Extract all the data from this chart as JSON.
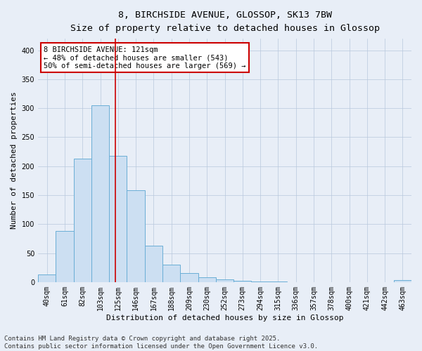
{
  "title": "8, BIRCHSIDE AVENUE, GLOSSOP, SK13 7BW",
  "subtitle": "Size of property relative to detached houses in Glossop",
  "xlabel": "Distribution of detached houses by size in Glossop",
  "ylabel": "Number of detached properties",
  "bin_labels": [
    "40sqm",
    "61sqm",
    "82sqm",
    "103sqm",
    "125sqm",
    "146sqm",
    "167sqm",
    "188sqm",
    "209sqm",
    "230sqm",
    "252sqm",
    "273sqm",
    "294sqm",
    "315sqm",
    "336sqm",
    "357sqm",
    "378sqm",
    "400sqm",
    "421sqm",
    "442sqm",
    "463sqm"
  ],
  "bar_heights": [
    13,
    88,
    213,
    305,
    218,
    159,
    63,
    30,
    15,
    8,
    5,
    2,
    1,
    1,
    0,
    0,
    0,
    0,
    0,
    0,
    3
  ],
  "bar_color": "#ccdff2",
  "bar_edge_color": "#6aaed6",
  "vline_bin_index": 3.85,
  "vline_color": "#cc0000",
  "annotation_text": "8 BIRCHSIDE AVENUE: 121sqm\n← 48% of detached houses are smaller (543)\n50% of semi-detached houses are larger (569) →",
  "annotation_box_color": "#ffffff",
  "annotation_border_color": "#cc0000",
  "ylim": [
    0,
    420
  ],
  "yticks": [
    0,
    50,
    100,
    150,
    200,
    250,
    300,
    350,
    400
  ],
  "footer_line1": "Contains HM Land Registry data © Crown copyright and database right 2025.",
  "footer_line2": "Contains public sector information licensed under the Open Government Licence v3.0.",
  "background_color": "#e8eef7",
  "plot_background": "#e8eef7",
  "title_fontsize": 9.5,
  "subtitle_fontsize": 8.5,
  "axis_label_fontsize": 8,
  "tick_fontsize": 7,
  "annotation_fontsize": 7.5,
  "footer_fontsize": 6.5
}
